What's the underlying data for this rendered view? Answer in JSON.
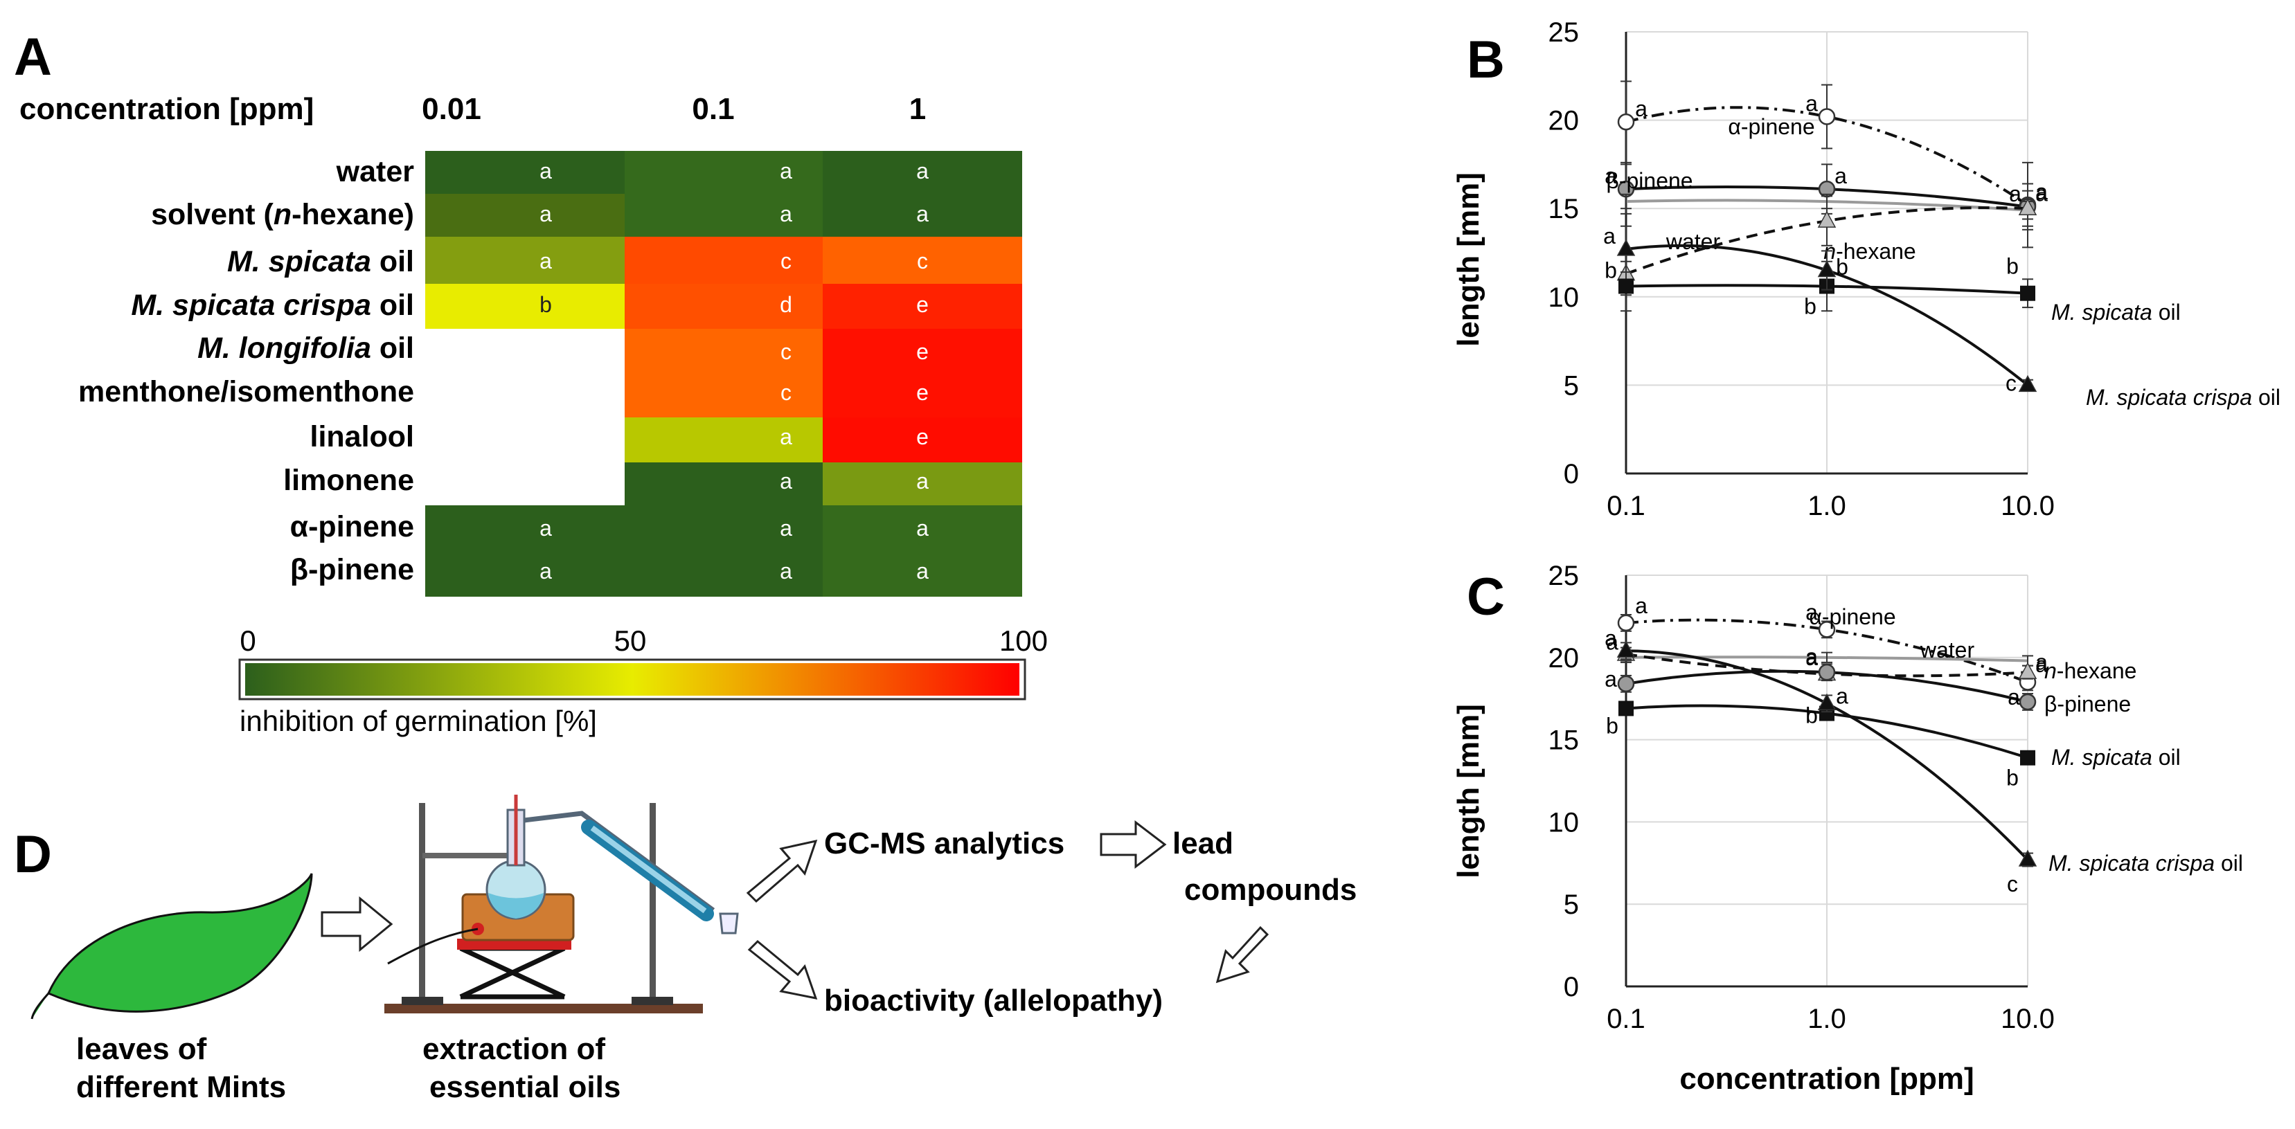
{
  "heatmap": {
    "panel_label": "A",
    "header_label": "concentration [ppm]",
    "columns": [
      "0.01",
      "0.1",
      "1"
    ],
    "rows": [
      {
        "parts": [
          {
            "t": "water",
            "i": false
          }
        ],
        "cells": [
          {
            "c": "#2c5f1c",
            "l": "a"
          },
          {
            "c": "#356a1c",
            "l": "a"
          },
          {
            "c": "#2c5f1c",
            "l": "a"
          }
        ]
      },
      {
        "parts": [
          {
            "t": "solvent (",
            "i": false
          },
          {
            "t": "n",
            "i": true
          },
          {
            "t": "-hexane)",
            "i": false
          }
        ],
        "cells": [
          {
            "c": "#4a6e12",
            "l": "a"
          },
          {
            "c": "#356a1c",
            "l": "a"
          },
          {
            "c": "#2c5f1c",
            "l": "a"
          }
        ]
      },
      {
        "parts": [
          {
            "t": "M. spicata",
            "i": true
          },
          {
            "t": " oil",
            "i": false
          }
        ],
        "cells": [
          {
            "c": "#849e10",
            "l": "a"
          },
          {
            "c": "#ff4a00",
            "l": "c"
          },
          {
            "c": "#ff6200",
            "l": "c"
          }
        ]
      },
      {
        "parts": [
          {
            "t": "M. spicata crispa",
            "i": true
          },
          {
            "t": " oil",
            "i": false
          }
        ],
        "cells": [
          {
            "c": "#e8ec00",
            "l": "b"
          },
          {
            "c": "#ff5000",
            "l": "d"
          },
          {
            "c": "#ff2200",
            "l": "e"
          }
        ]
      },
      {
        "parts": [
          {
            "t": "M. longifolia",
            "i": true
          },
          {
            "t": " oil",
            "i": false
          }
        ],
        "cells": [
          null,
          {
            "c": "#ff6600",
            "l": "c"
          },
          {
            "c": "#ff1000",
            "l": "e"
          }
        ]
      },
      {
        "parts": [
          {
            "t": "menthone/isomenthone",
            "i": false
          }
        ],
        "cells": [
          null,
          {
            "c": "#ff6600",
            "l": "c"
          },
          {
            "c": "#ff1000",
            "l": "e"
          }
        ]
      },
      {
        "parts": [
          {
            "t": "linalool",
            "i": false
          }
        ],
        "cells": [
          null,
          {
            "c": "#b8c800",
            "l": "a"
          },
          {
            "c": "#ff0c00",
            "l": "e"
          }
        ]
      },
      {
        "parts": [
          {
            "t": "limonene",
            "i": false
          }
        ],
        "cells": [
          null,
          {
            "c": "#2c5f1c",
            "l": "a"
          },
          {
            "c": "#7a9a12",
            "l": "a"
          }
        ]
      },
      {
        "parts": [
          {
            "t": "α-pinene",
            "i": false
          }
        ],
        "cells": [
          {
            "c": "#2c5f1c",
            "l": "a"
          },
          {
            "c": "#2c5f1c",
            "l": "a"
          },
          {
            "c": "#356a1c",
            "l": "a"
          }
        ]
      },
      {
        "parts": [
          {
            "t": "β-pinene",
            "i": false
          }
        ],
        "cells": [
          {
            "c": "#2c5f1c",
            "l": "a"
          },
          {
            "c": "#2c5f1c",
            "l": "a"
          },
          {
            "c": "#356a1c",
            "l": "a"
          }
        ]
      }
    ],
    "scale": {
      "min": "0",
      "mid": "50",
      "max": "100",
      "title": "inhibition of germination [%]",
      "gradient": [
        "#2c5f1c",
        "#e8ec00",
        "#ff0000"
      ]
    }
  },
  "flow": {
    "panel_label": "D",
    "leaf_caption": [
      "leaves of",
      "different Mints"
    ],
    "extraction_caption": [
      "extraction of",
      "essential oils"
    ],
    "gc_ms": "GC-MS analytics",
    "lead": [
      "lead",
      "compounds"
    ],
    "bioactivity": "bioactivity (allelopathy)",
    "leaf_color": "#2db83d"
  },
  "chart_data": [
    {
      "type": "line",
      "panel_label": "B",
      "ylabel": "length [mm]",
      "xlabel": "",
      "x": [
        0.1,
        1.0,
        10.0
      ],
      "xticks": [
        "0.1",
        "1.0",
        "10.0"
      ],
      "xscale": "log",
      "ylim": [
        0,
        25
      ],
      "yticks": [
        "0",
        "5",
        "10",
        "15",
        "20",
        "25"
      ],
      "series": [
        {
          "name": "α-pinene",
          "values": [
            19.9,
            20.2,
            15.2
          ],
          "errors": [
            2.3,
            1.8,
            2.4
          ],
          "marker": "circle-open",
          "dash": "dashdot",
          "letters": [
            "a",
            "a",
            "a"
          ],
          "label_parts": [
            {
              "t": "α-pinene",
              "i": false
            }
          ]
        },
        {
          "name": "β-pinene",
          "values": [
            16.1,
            16.1,
            15.1
          ],
          "errors": [
            1.4,
            1.4,
            1.3
          ],
          "marker": "circle-gray",
          "dash": "solid",
          "letters": [
            "a",
            "a",
            "a"
          ],
          "label_parts": [
            {
              "t": "β-pinene",
              "i": false
            }
          ]
        },
        {
          "name": "water",
          "values": [
            15.4,
            15.4,
            14.9
          ],
          "errors": [
            0.4,
            0.4,
            0.5
          ],
          "marker": "none-gray",
          "dash": "solid-gray",
          "letters": [
            "",
            "",
            ""
          ],
          "label_parts": [
            {
              "t": "water",
              "i": false
            }
          ]
        },
        {
          "name": "n-hexane",
          "values": [
            11.3,
            14.3,
            15.0
          ],
          "errors": [
            1.2,
            1.4,
            1.0
          ],
          "marker": "triangle-gray",
          "dash": "dashed",
          "letters": [
            "",
            "",
            "a"
          ],
          "label_parts": [
            {
              "t": "n",
              "i": true
            },
            {
              "t": "-hexane",
              "i": false
            }
          ]
        },
        {
          "name": "M. spicata oil",
          "values": [
            10.6,
            10.6,
            10.2
          ],
          "errors": [
            1.4,
            1.4,
            0.8
          ],
          "marker": "square",
          "dash": "solid",
          "letters": [
            "b",
            "b",
            "b"
          ],
          "label_parts": [
            {
              "t": "M. spicata",
              "i": true
            },
            {
              "t": " oil",
              "i": false
            }
          ]
        },
        {
          "name": "M. spicata crispa oil",
          "values": [
            12.7,
            11.5,
            5.0
          ],
          "errors": [
            1.3,
            1.1,
            0.3
          ],
          "marker": "triangle",
          "dash": "solid",
          "letters": [
            "a",
            "b",
            "c"
          ],
          "label_parts": [
            {
              "t": "M. spicata crispa",
              "i": true
            },
            {
              "t": " oil",
              "i": false
            }
          ]
        }
      ]
    },
    {
      "type": "line",
      "panel_label": "C",
      "ylabel": "length [mm]",
      "xlabel": "concentration [ppm]",
      "x": [
        0.1,
        1.0,
        10.0
      ],
      "xticks": [
        "0.1",
        "1.0",
        "10.0"
      ],
      "xscale": "log",
      "ylim": [
        0,
        25
      ],
      "yticks": [
        "0",
        "5",
        "10",
        "15",
        "20",
        "25"
      ],
      "series": [
        {
          "name": "α-pinene",
          "values": [
            22.1,
            21.7,
            18.5
          ],
          "errors": [
            0.5,
            0.5,
            0.5
          ],
          "marker": "circle-open",
          "dash": "dashdot",
          "letters": [
            "a",
            "a",
            "a"
          ],
          "label_parts": [
            {
              "t": "α-pinene",
              "i": false
            }
          ]
        },
        {
          "name": "water",
          "values": [
            20.0,
            20.0,
            19.8
          ],
          "errors": [
            0.3,
            0.3,
            0.3
          ],
          "marker": "none-gray",
          "dash": "solid-gray",
          "letters": [
            "",
            "",
            ""
          ],
          "label_parts": [
            {
              "t": "water",
              "i": false
            }
          ]
        },
        {
          "name": "n-hexane",
          "values": [
            20.2,
            19.0,
            19.1
          ],
          "errors": [
            0.4,
            0.4,
            0.4
          ],
          "marker": "triangle-gray",
          "dash": "dashed",
          "letters": [
            "a",
            "a",
            "a"
          ],
          "label_parts": [
            {
              "t": "n",
              "i": true
            },
            {
              "t": "-hexane",
              "i": false
            }
          ]
        },
        {
          "name": "β-pinene",
          "values": [
            18.4,
            19.1,
            17.3
          ],
          "errors": [
            0.5,
            0.5,
            0.5
          ],
          "marker": "circle-gray",
          "dash": "solid",
          "letters": [
            "a",
            "a",
            "a"
          ],
          "label_parts": [
            {
              "t": "β-pinene",
              "i": false
            }
          ]
        },
        {
          "name": "M. spicata oil",
          "values": [
            16.9,
            16.6,
            13.9
          ],
          "errors": [
            0.4,
            0.4,
            0.4
          ],
          "marker": "square",
          "dash": "solid",
          "letters": [
            "b",
            "b",
            "b"
          ],
          "label_parts": [
            {
              "t": "M. spicata",
              "i": true
            },
            {
              "t": " oil",
              "i": false
            }
          ]
        },
        {
          "name": "M. spicata crispa oil",
          "values": [
            20.4,
            17.2,
            7.7
          ],
          "errors": [
            0.5,
            0.5,
            0.4
          ],
          "marker": "triangle",
          "dash": "solid",
          "letters": [
            "a",
            "a",
            "c"
          ],
          "label_parts": [
            {
              "t": "M. spicata crispa",
              "i": true
            },
            {
              "t": " oil",
              "i": false
            }
          ]
        }
      ]
    }
  ]
}
